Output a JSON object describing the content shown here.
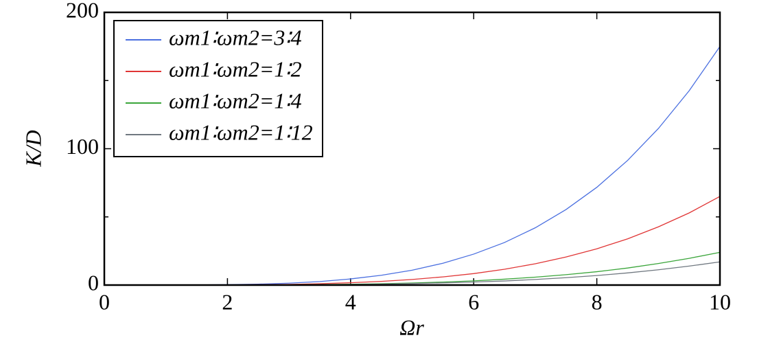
{
  "chart_data": {
    "type": "line",
    "x_label": "Ωr",
    "y_label": "K/D",
    "x": [
      0,
      0.5,
      1,
      1.5,
      2,
      2.5,
      3,
      3.5,
      4,
      4.5,
      5,
      5.5,
      6,
      6.5,
      7,
      7.5,
      8,
      8.5,
      9,
      9.5,
      10
    ],
    "series": [
      {
        "name": "ωm1∶ωm2=3∶4",
        "color": "#4a6fe0",
        "values": [
          0,
          0,
          0,
          0.1,
          0.3,
          0.7,
          1.4,
          2.6,
          4.5,
          7.2,
          10.9,
          16.0,
          22.7,
          31.2,
          42.0,
          55.4,
          71.7,
          91.4,
          114.8,
          142.5,
          175
        ]
      },
      {
        "name": "ωm1∶ωm2=1∶2",
        "color": "#e03535",
        "values": [
          0,
          0,
          0,
          0,
          0.1,
          0.3,
          0.5,
          1.0,
          1.7,
          2.7,
          4.1,
          6.0,
          8.4,
          11.6,
          15.6,
          20.6,
          26.6,
          33.9,
          42.7,
          52.9,
          65
        ]
      },
      {
        "name": "ωm1∶ωm2=1∶4",
        "color": "#3aa53a",
        "values": [
          0,
          0,
          0,
          0,
          0,
          0.1,
          0.2,
          0.4,
          0.6,
          1.0,
          1.5,
          2.2,
          3.1,
          4.3,
          5.8,
          7.6,
          9.8,
          12.5,
          15.8,
          19.6,
          24
        ]
      },
      {
        "name": "ωm1∶ωm2=1∶12",
        "color": "#707880",
        "values": [
          0,
          0,
          0,
          0,
          0,
          0.1,
          0.1,
          0.3,
          0.4,
          0.7,
          1.1,
          1.6,
          2.2,
          3.0,
          4.1,
          5.4,
          7.0,
          8.9,
          11.2,
          13.9,
          17
        ]
      }
    ],
    "xlim": [
      0,
      10
    ],
    "xticks": [
      0,
      2,
      4,
      6,
      8,
      10
    ],
    "ylim": [
      0,
      200
    ],
    "yticks": [
      0,
      100,
      200
    ],
    "yminorticks": [
      50,
      150
    ],
    "legend": "upper left"
  }
}
